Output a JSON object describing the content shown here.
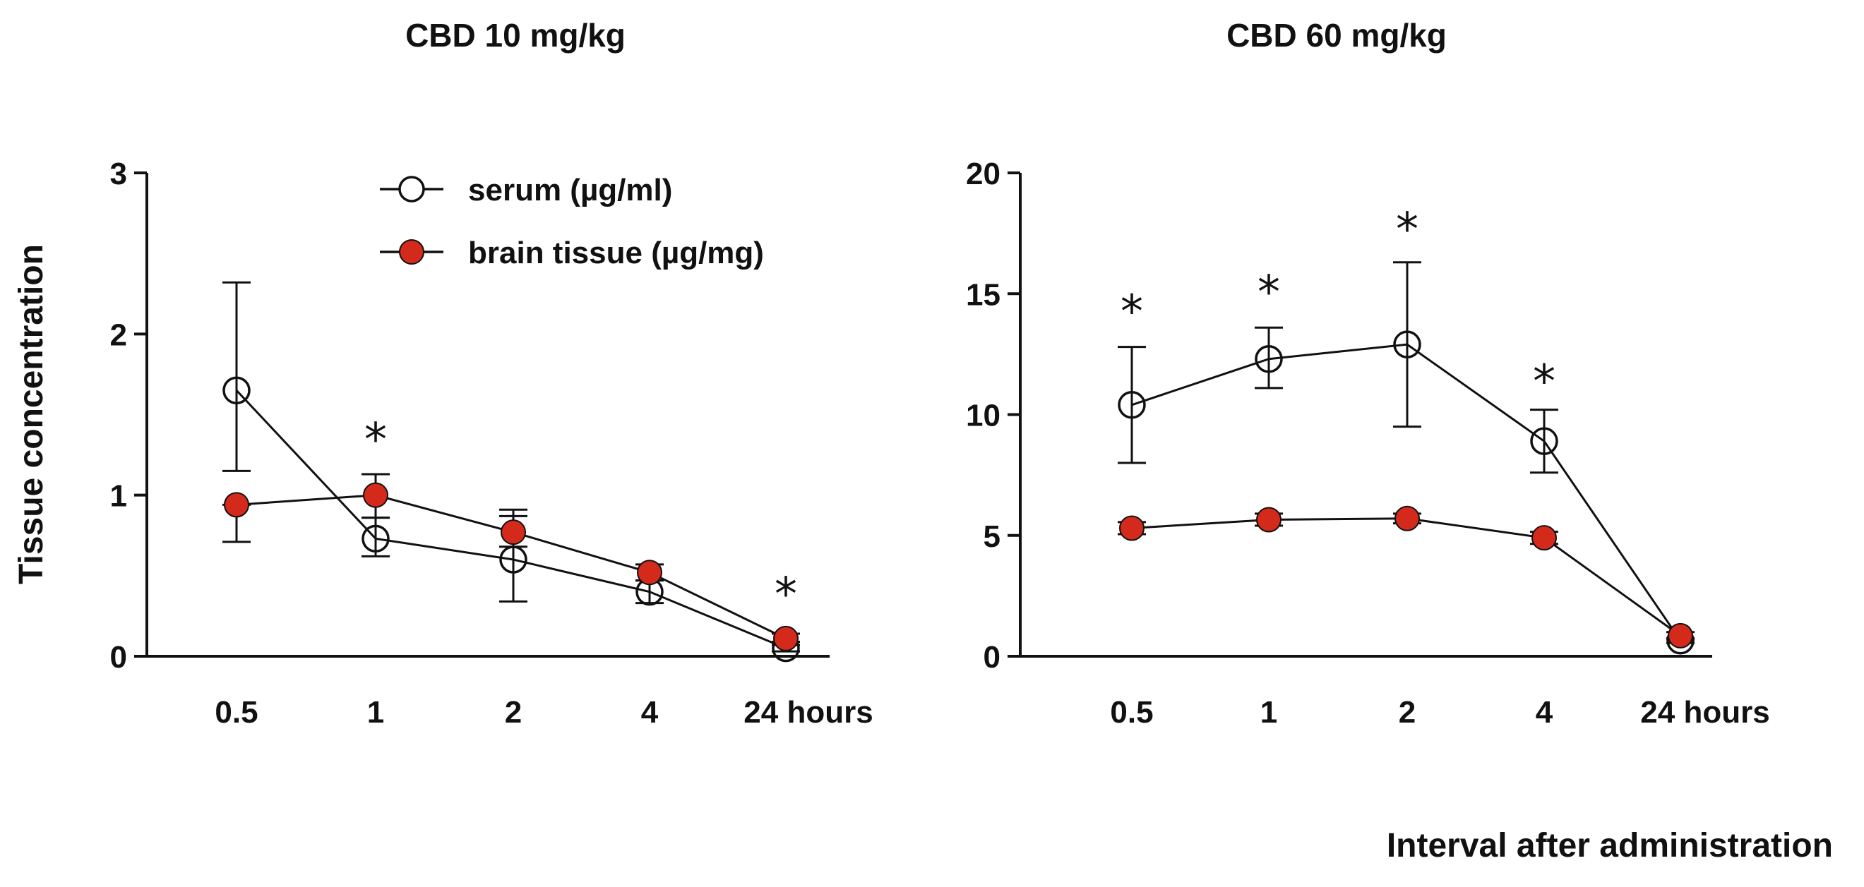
{
  "y_axis_title": "Tissue concentration",
  "x_axis_title": "Interval after administration",
  "legend": [
    {
      "label": "serum (µg/ml)",
      "marker": "open-circle"
    },
    {
      "label": "brain tissue (µg/mg)",
      "marker": "filled-circle"
    }
  ],
  "colors": {
    "axis": "#111111",
    "serum_marker_stroke": "#111111",
    "brain_marker_fill": "#d42a1c",
    "background": "#ffffff"
  },
  "chart_data": [
    {
      "type": "line",
      "title": "CBD 10 mg/kg",
      "categories": [
        "0.5",
        "1",
        "2",
        "4",
        "24 hours"
      ],
      "ylim": [
        0,
        3
      ],
      "yticks": [
        0,
        1,
        2,
        3
      ],
      "xlabel": "",
      "ylabel": "Tissue concentration",
      "series": [
        {
          "name": "serum (µg/ml)",
          "marker": "open",
          "values": [
            1.65,
            0.73,
            0.6,
            0.4,
            0.05
          ],
          "error_low": [
            1.15,
            0.62,
            0.34,
            0.33,
            0.03
          ],
          "error_high": [
            2.32,
            0.86,
            0.87,
            0.47,
            0.07
          ]
        },
        {
          "name": "brain tissue (µg/mg)",
          "marker": "filled",
          "values": [
            0.94,
            1.0,
            0.77,
            0.52,
            0.11
          ],
          "error_low": [
            0.71,
            0.86,
            0.68,
            0.47,
            0.09
          ],
          "error_high": [
            0.94,
            1.13,
            0.91,
            0.57,
            0.14
          ]
        }
      ],
      "significance": [
        {
          "category": "1",
          "value": 1.38,
          "label": "*"
        },
        {
          "category": "24 hours",
          "value": 0.42,
          "label": "*"
        }
      ]
    },
    {
      "type": "line",
      "title": "CBD 60 mg/kg",
      "categories": [
        "0.5",
        "1",
        "2",
        "4",
        "24 hours"
      ],
      "ylim": [
        0,
        20
      ],
      "yticks": [
        0,
        5,
        10,
        15,
        20
      ],
      "xlabel": "Interval after administration",
      "ylabel": "",
      "series": [
        {
          "name": "serum (µg/ml)",
          "marker": "open",
          "values": [
            10.4,
            12.3,
            12.9,
            8.9,
            0.65
          ],
          "error_low": [
            8.0,
            11.1,
            9.5,
            7.6,
            0.55
          ],
          "error_high": [
            12.8,
            13.6,
            16.3,
            10.2,
            0.75
          ]
        },
        {
          "name": "brain tissue (µg/mg)",
          "marker": "filled",
          "values": [
            5.3,
            5.65,
            5.7,
            4.9,
            0.85
          ],
          "error_low": [
            5.05,
            5.4,
            5.5,
            4.65,
            0.7
          ],
          "error_high": [
            5.55,
            5.9,
            5.9,
            5.15,
            1.0
          ]
        }
      ],
      "significance": [
        {
          "category": "0.5",
          "value": 14.5,
          "label": "*"
        },
        {
          "category": "1",
          "value": 15.3,
          "label": "*"
        },
        {
          "category": "2",
          "value": 17.9,
          "label": "*"
        },
        {
          "category": "4",
          "value": 11.6,
          "label": "*"
        }
      ]
    }
  ]
}
